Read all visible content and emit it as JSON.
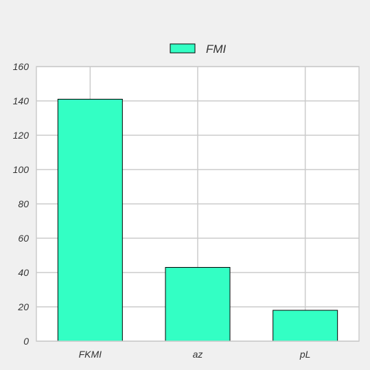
{
  "chart_data": {
    "type": "bar",
    "categories": [
      "FKMI",
      "az",
      "pL"
    ],
    "series": [
      {
        "name": "FMI",
        "values": [
          141,
          43,
          18
        ]
      }
    ],
    "ylim": [
      0,
      160
    ],
    "yticks": [
      0,
      20,
      40,
      60,
      80,
      100,
      120,
      140,
      160
    ],
    "grid": true,
    "legend_position": "top-center",
    "colors": {
      "bar_fill": "#33ffc4",
      "bar_stroke": "#000000",
      "grid": "#cbcbcb",
      "plot_bg": "#ffffff",
      "figure_bg": "#f0f0f0",
      "text": "#333333"
    }
  }
}
